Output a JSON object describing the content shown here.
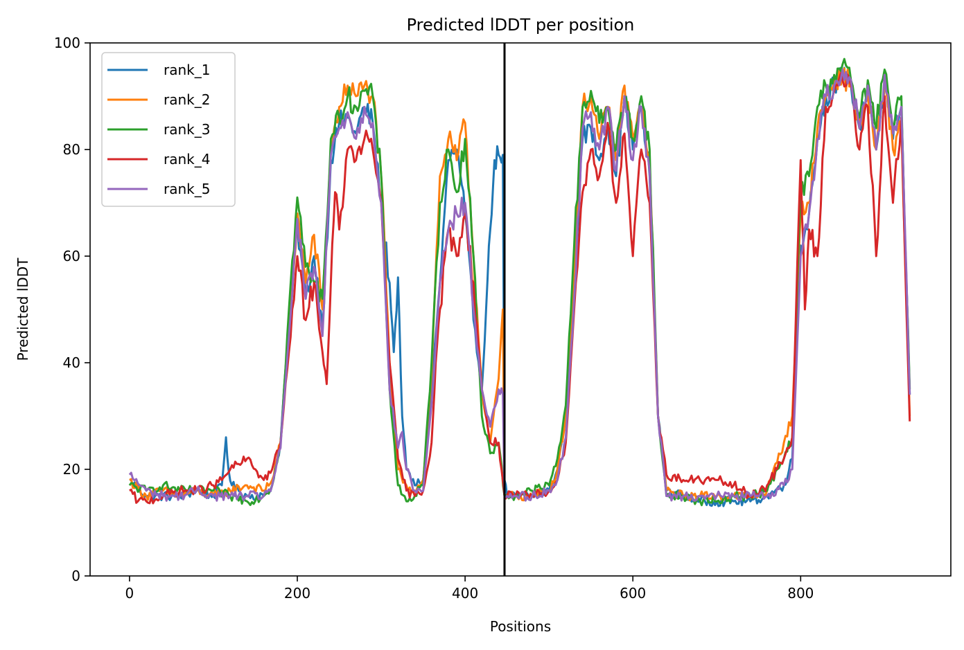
{
  "chart_data": {
    "type": "line",
    "title": "Predicted lDDT per position",
    "xlabel": "Positions",
    "ylabel": "Predicted lDDT",
    "xlim": [
      -47,
      979
    ],
    "ylim": [
      0,
      100
    ],
    "xticks": [
      0,
      200,
      400,
      600,
      800
    ],
    "yticks": [
      0,
      20,
      40,
      60,
      80,
      100
    ],
    "xtick_labels": [
      "0",
      "200",
      "400",
      "600",
      "800"
    ],
    "ytick_labels": [
      "0",
      "20",
      "40",
      "60",
      "80",
      "100"
    ],
    "grid": false,
    "legend_position": "top-left",
    "vertical_lines": [
      447
    ],
    "series": [
      {
        "name": "rank_1",
        "color": "#1f77b4",
        "x": [
          0,
          20,
          40,
          60,
          80,
          100,
          110,
          115,
          118,
          122,
          130,
          140,
          160,
          170,
          180,
          190,
          200,
          210,
          220,
          230,
          240,
          250,
          260,
          270,
          280,
          290,
          300,
          310,
          315,
          320,
          325,
          330,
          340,
          350,
          360,
          370,
          380,
          390,
          400,
          410,
          420,
          425,
          430,
          435,
          440,
          445,
          447,
          450,
          460,
          480,
          500,
          510,
          520,
          530,
          540,
          550,
          560,
          570,
          580,
          590,
          600,
          610,
          620,
          630,
          640,
          660,
          680,
          700,
          720,
          740,
          760,
          780,
          790,
          800,
          810,
          820,
          830,
          840,
          850,
          860,
          870,
          880,
          890,
          900,
          910,
          920,
          930
        ],
        "y": [
          18,
          15,
          15,
          15,
          16,
          15,
          17,
          26,
          20,
          17,
          16,
          15,
          15,
          17,
          25,
          48,
          66,
          52,
          60,
          47,
          78,
          85,
          86,
          83,
          88,
          85,
          70,
          55,
          42,
          56,
          30,
          20,
          17,
          18,
          35,
          55,
          78,
          80,
          68,
          48,
          35,
          50,
          65,
          78,
          79,
          79,
          18,
          15,
          15,
          15,
          16,
          20,
          30,
          55,
          82,
          84,
          78,
          85,
          75,
          90,
          80,
          88,
          75,
          30,
          16,
          15,
          14,
          14,
          14,
          14,
          15,
          17,
          22,
          62,
          68,
          82,
          90,
          92,
          94,
          92,
          84,
          92,
          80,
          92,
          82,
          88,
          34
        ]
      },
      {
        "name": "rank_2",
        "color": "#ff7f0e",
        "x": [
          0,
          20,
          40,
          60,
          80,
          100,
          120,
          140,
          160,
          170,
          180,
          190,
          200,
          210,
          220,
          230,
          240,
          250,
          260,
          270,
          280,
          290,
          300,
          310,
          320,
          330,
          340,
          350,
          360,
          370,
          380,
          390,
          400,
          410,
          420,
          430,
          440,
          445,
          447,
          450,
          460,
          480,
          500,
          510,
          520,
          530,
          540,
          550,
          560,
          570,
          580,
          590,
          600,
          610,
          620,
          630,
          640,
          660,
          680,
          700,
          720,
          740,
          760,
          780,
          790,
          800,
          810,
          820,
          830,
          840,
          850,
          860,
          870,
          880,
          890,
          900,
          910,
          920,
          930
        ],
        "y": [
          18,
          15,
          16,
          15,
          16,
          15,
          16,
          17,
          16,
          18,
          25,
          45,
          68,
          55,
          64,
          50,
          80,
          88,
          92,
          90,
          92,
          90,
          75,
          40,
          20,
          17,
          16,
          18,
          38,
          75,
          82,
          78,
          85,
          60,
          35,
          25,
          37,
          50,
          15,
          15,
          15,
          15,
          16,
          20,
          30,
          58,
          88,
          90,
          82,
          88,
          78,
          92,
          82,
          88,
          78,
          30,
          16,
          15,
          15,
          15,
          15,
          15,
          16,
          25,
          30,
          68,
          70,
          84,
          90,
          93,
          94,
          92,
          84,
          90,
          80,
          92,
          80,
          85,
          30
        ]
      },
      {
        "name": "rank_3",
        "color": "#2ca02c",
        "x": [
          0,
          20,
          40,
          60,
          80,
          100,
          120,
          140,
          160,
          170,
          180,
          190,
          200,
          210,
          220,
          230,
          240,
          250,
          260,
          270,
          280,
          290,
          300,
          310,
          320,
          330,
          340,
          350,
          360,
          370,
          380,
          390,
          400,
          410,
          420,
          430,
          440,
          447,
          450,
          460,
          480,
          500,
          510,
          520,
          530,
          540,
          550,
          560,
          570,
          580,
          590,
          600,
          610,
          620,
          630,
          640,
          660,
          680,
          700,
          720,
          740,
          760,
          780,
          790,
          800,
          810,
          820,
          830,
          840,
          850,
          860,
          870,
          880,
          890,
          900,
          910,
          920,
          930
        ],
        "y": [
          17,
          16,
          17,
          16,
          16,
          16,
          15,
          14,
          15,
          17,
          25,
          50,
          71,
          58,
          55,
          52,
          82,
          86,
          90,
          88,
          91,
          90,
          75,
          35,
          17,
          14,
          15,
          17,
          40,
          70,
          80,
          72,
          82,
          60,
          30,
          23,
          25,
          15,
          15,
          15,
          16,
          17,
          22,
          32,
          62,
          88,
          91,
          85,
          88,
          80,
          90,
          82,
          90,
          80,
          30,
          15,
          15,
          14,
          14,
          15,
          15,
          16,
          22,
          26,
          72,
          75,
          88,
          92,
          94,
          96,
          93,
          86,
          93,
          84,
          95,
          84,
          90,
          35
        ]
      },
      {
        "name": "rank_4",
        "color": "#d62728",
        "x": [
          0,
          10,
          20,
          40,
          60,
          80,
          100,
          110,
          120,
          130,
          140,
          150,
          160,
          170,
          180,
          190,
          200,
          210,
          220,
          230,
          235,
          240,
          245,
          250,
          260,
          270,
          280,
          290,
          300,
          310,
          320,
          330,
          340,
          350,
          360,
          365,
          370,
          380,
          390,
          400,
          410,
          420,
          430,
          440,
          447,
          450,
          460,
          480,
          500,
          510,
          520,
          530,
          540,
          550,
          560,
          570,
          580,
          590,
          600,
          610,
          620,
          630,
          640,
          660,
          680,
          700,
          720,
          740,
          760,
          780,
          790,
          800,
          805,
          810,
          820,
          830,
          840,
          850,
          860,
          870,
          880,
          890,
          900,
          910,
          920,
          930
        ],
        "y": [
          16,
          14,
          14,
          15,
          16,
          16,
          17,
          18,
          20,
          21,
          22,
          20,
          18,
          20,
          25,
          42,
          60,
          48,
          55,
          42,
          36,
          55,
          72,
          65,
          80,
          78,
          82,
          80,
          70,
          40,
          22,
          16,
          15,
          16,
          25,
          40,
          50,
          65,
          60,
          68,
          55,
          35,
          25,
          25,
          15,
          15,
          15,
          15,
          16,
          18,
          25,
          50,
          72,
          80,
          75,
          85,
          70,
          83,
          60,
          80,
          70,
          30,
          19,
          18,
          18,
          18,
          17,
          15,
          17,
          22,
          26,
          78,
          50,
          65,
          60,
          88,
          91,
          93,
          92,
          80,
          88,
          60,
          90,
          70,
          86,
          29
        ]
      },
      {
        "name": "rank_5",
        "color": "#9467bd",
        "x": [
          0,
          20,
          40,
          60,
          80,
          100,
          120,
          140,
          160,
          170,
          180,
          190,
          200,
          210,
          220,
          230,
          240,
          250,
          260,
          270,
          280,
          290,
          300,
          310,
          320,
          325,
          330,
          340,
          350,
          360,
          370,
          380,
          390,
          400,
          410,
          420,
          430,
          440,
          445,
          447,
          450,
          460,
          480,
          500,
          510,
          520,
          530,
          540,
          550,
          560,
          570,
          580,
          590,
          600,
          610,
          620,
          630,
          640,
          660,
          680,
          700,
          720,
          740,
          760,
          780,
          790,
          800,
          810,
          820,
          830,
          840,
          850,
          860,
          870,
          880,
          890,
          900,
          910,
          920,
          930
        ],
        "y": [
          19,
          16,
          15,
          15,
          16,
          15,
          15,
          15,
          15,
          17,
          24,
          45,
          67,
          52,
          58,
          45,
          79,
          84,
          87,
          82,
          88,
          85,
          70,
          35,
          24,
          27,
          20,
          16,
          16,
          32,
          55,
          65,
          68,
          70,
          50,
          35,
          28,
          35,
          34,
          15,
          15,
          15,
          15,
          16,
          18,
          26,
          52,
          84,
          87,
          80,
          88,
          76,
          90,
          78,
          88,
          76,
          30,
          15,
          15,
          15,
          15,
          15,
          15,
          15,
          17,
          20,
          60,
          68,
          82,
          90,
          92,
          95,
          93,
          84,
          92,
          80,
          94,
          83,
          88,
          34
        ]
      }
    ]
  }
}
